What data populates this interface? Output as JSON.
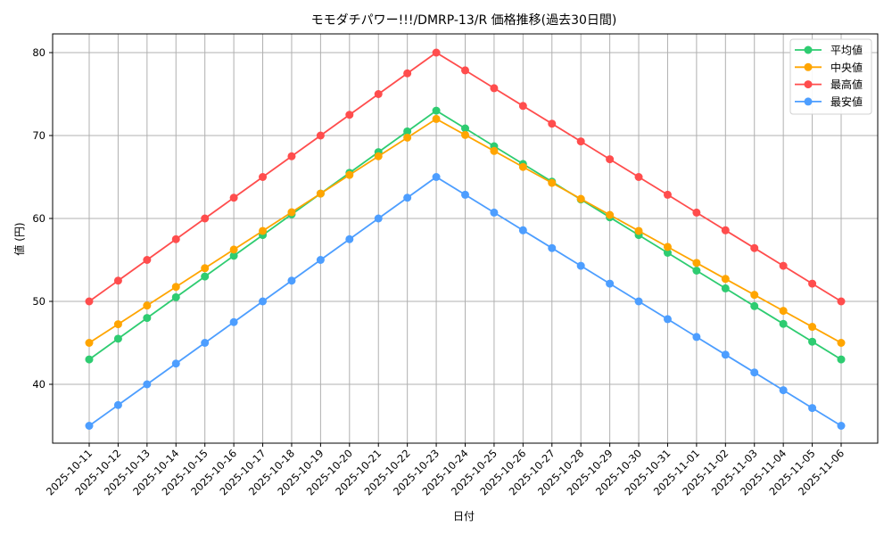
{
  "chart_data": {
    "type": "line",
    "title": "モモダチパワー!!!/DMRP-13/R 価格推移(過去30日間)",
    "xlabel": "日付",
    "ylabel": "値 (円)",
    "ylim": [
      32.85,
      82.2
    ],
    "yticks": [
      40,
      50,
      60,
      70,
      80
    ],
    "grid": true,
    "legend_position": "upper right",
    "x": [
      "2025-10-11",
      "2025-10-12",
      "2025-10-13",
      "2025-10-14",
      "2025-10-15",
      "2025-10-16",
      "2025-10-17",
      "2025-10-18",
      "2025-10-19",
      "2025-10-20",
      "2025-10-21",
      "2025-10-22",
      "2025-10-23",
      "2025-10-24",
      "2025-10-25",
      "2025-10-26",
      "2025-10-27",
      "2025-10-28",
      "2025-10-29",
      "2025-10-30",
      "2025-10-31",
      "2025-11-01",
      "2025-11-02",
      "2025-11-03",
      "2025-11-04",
      "2025-11-05",
      "2025-11-06"
    ],
    "series": [
      {
        "name": "平均値",
        "color": "#2ecc71",
        "values": [
          43,
          45.5,
          48,
          50.5,
          53,
          55.5,
          58,
          60.5,
          63,
          65.5,
          68,
          70.5,
          73,
          70.86,
          68.71,
          66.57,
          64.43,
          62.29,
          60.14,
          58,
          55.86,
          53.71,
          51.57,
          49.43,
          47.29,
          45.14,
          43
        ]
      },
      {
        "name": "中央値",
        "color": "#ffa500",
        "values": [
          45,
          47.25,
          49.5,
          51.75,
          54,
          56.25,
          58.5,
          60.75,
          63,
          65.25,
          67.5,
          69.75,
          72,
          70.07,
          68.14,
          66.21,
          64.29,
          62.36,
          60.43,
          58.5,
          56.57,
          54.64,
          52.71,
          50.79,
          48.86,
          46.93,
          45
        ]
      },
      {
        "name": "最高値",
        "color": "#ff4d4d",
        "values": [
          50,
          52.5,
          55,
          57.5,
          60,
          62.5,
          65,
          67.5,
          70,
          72.5,
          75,
          77.5,
          80,
          77.86,
          75.71,
          73.57,
          71.43,
          69.29,
          67.14,
          65,
          62.86,
          60.71,
          58.57,
          56.43,
          54.29,
          52.14,
          50
        ]
      },
      {
        "name": "最安値",
        "color": "#4d9eff",
        "values": [
          35,
          37.5,
          40,
          42.5,
          45,
          47.5,
          50,
          52.5,
          55,
          57.5,
          60,
          62.5,
          65,
          62.86,
          60.71,
          58.57,
          56.43,
          54.29,
          52.14,
          50,
          47.86,
          45.71,
          43.57,
          41.43,
          39.29,
          37.14,
          35
        ]
      }
    ]
  }
}
